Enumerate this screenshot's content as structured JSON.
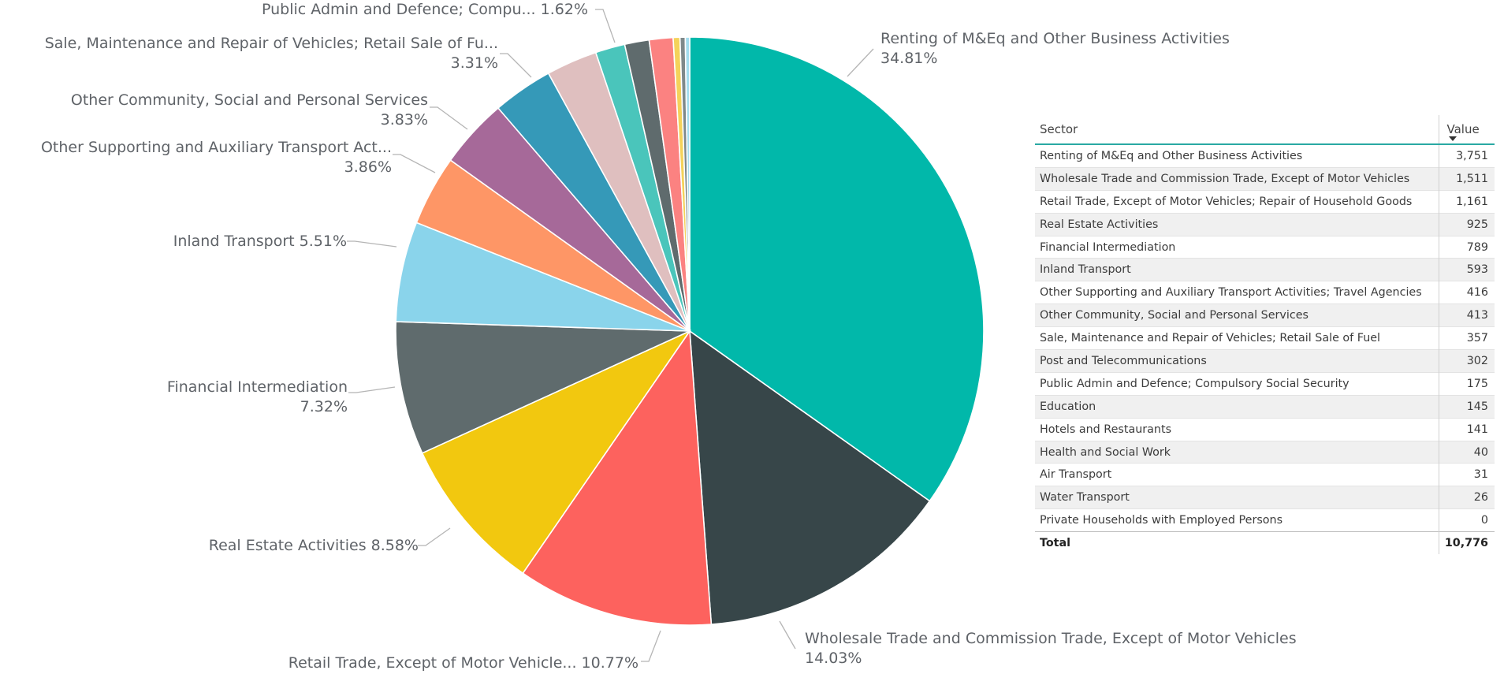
{
  "chart_data": [
    {
      "type": "pie",
      "slices": [
        {
          "label": "Renting of M&Eq and Other Business Activities",
          "percent_label": "34.81%",
          "value": 3751,
          "color": "#01B8AA"
        },
        {
          "label": "Wholesale Trade and Commission Trade, Except of Motor Vehicles",
          "percent_label": "14.03%",
          "value": 1511,
          "color": "#374649"
        },
        {
          "label": "Retail Trade, Except of Motor Vehicle...",
          "percent_label": "10.77%",
          "value": 1161,
          "color": "#FD625E"
        },
        {
          "label": "Real Estate Activities",
          "percent_label": "8.58%",
          "value": 925,
          "color": "#F2C80F"
        },
        {
          "label": "Financial Intermediation",
          "percent_label": "7.32%",
          "value": 789,
          "color": "#5F6B6D"
        },
        {
          "label": "Inland Transport",
          "percent_label": "5.51%",
          "value": 593,
          "color": "#8AD4EB"
        },
        {
          "label": "Other Supporting and Auxiliary Transport Act...",
          "percent_label": "3.86%",
          "value": 416,
          "color": "#FE9666"
        },
        {
          "label": "Other Community, Social and Personal Services",
          "percent_label": "3.83%",
          "value": 413,
          "color": "#A66999"
        },
        {
          "label": "Sale, Maintenance and Repair of Vehicles; Retail Sale of Fu...",
          "percent_label": "3.31%",
          "value": 357,
          "color": "#3599B8"
        },
        {
          "label": "Post and Telecommunications",
          "percent_label": "",
          "value": 302,
          "color": "#DFBFBF"
        },
        {
          "label": "Public Admin and Defence; Compu...",
          "percent_label": "1.62%",
          "value": 175,
          "color": "#4AC5BB"
        },
        {
          "label": "Education",
          "percent_label": "",
          "value": 145,
          "color": "#5F6B6D"
        },
        {
          "label": "Hotels and Restaurants",
          "percent_label": "",
          "value": 141,
          "color": "#FB8281"
        },
        {
          "label": "Health and Social Work",
          "percent_label": "",
          "value": 40,
          "color": "#F4D25A"
        },
        {
          "label": "Air Transport",
          "percent_label": "",
          "value": 31,
          "color": "#7F898A"
        },
        {
          "label": "Water Transport",
          "percent_label": "",
          "value": 26,
          "color": "#A4DDEE"
        },
        {
          "label": "Private Households with Employed Persons",
          "percent_label": "",
          "value": 0,
          "color": "#FDAB89"
        }
      ]
    },
    {
      "type": "table",
      "columns": [
        "Sector",
        "Value"
      ],
      "rows": [
        {
          "sector": "Renting of M&Eq and Other Business Activities",
          "value": "3,751"
        },
        {
          "sector": "Wholesale Trade and Commission Trade, Except of Motor Vehicles",
          "value": "1,511"
        },
        {
          "sector": "Retail Trade, Except of Motor Vehicles; Repair of Household Goods",
          "value": "1,161"
        },
        {
          "sector": "Real Estate Activities",
          "value": "925"
        },
        {
          "sector": "Financial Intermediation",
          "value": "789"
        },
        {
          "sector": "Inland Transport",
          "value": "593"
        },
        {
          "sector": "Other Supporting and Auxiliary Transport Activities; Travel Agencies",
          "value": "416"
        },
        {
          "sector": "Other Community, Social and Personal Services",
          "value": "413"
        },
        {
          "sector": "Sale, Maintenance and Repair of Vehicles; Retail Sale of Fuel",
          "value": "357"
        },
        {
          "sector": "Post and Telecommunications",
          "value": "302"
        },
        {
          "sector": "Public Admin and Defence; Compulsory Social Security",
          "value": "175"
        },
        {
          "sector": "Education",
          "value": "145"
        },
        {
          "sector": "Hotels and Restaurants",
          "value": "141"
        },
        {
          "sector": "Health and Social Work",
          "value": "40"
        },
        {
          "sector": "Air Transport",
          "value": "31"
        },
        {
          "sector": "Water Transport",
          "value": "26"
        },
        {
          "sector": "Private Households with Employed Persons",
          "value": "0"
        }
      ],
      "total_label": "Total",
      "total_value": "10,776",
      "sort_column": "Value",
      "sort_direction": "descending"
    }
  ]
}
